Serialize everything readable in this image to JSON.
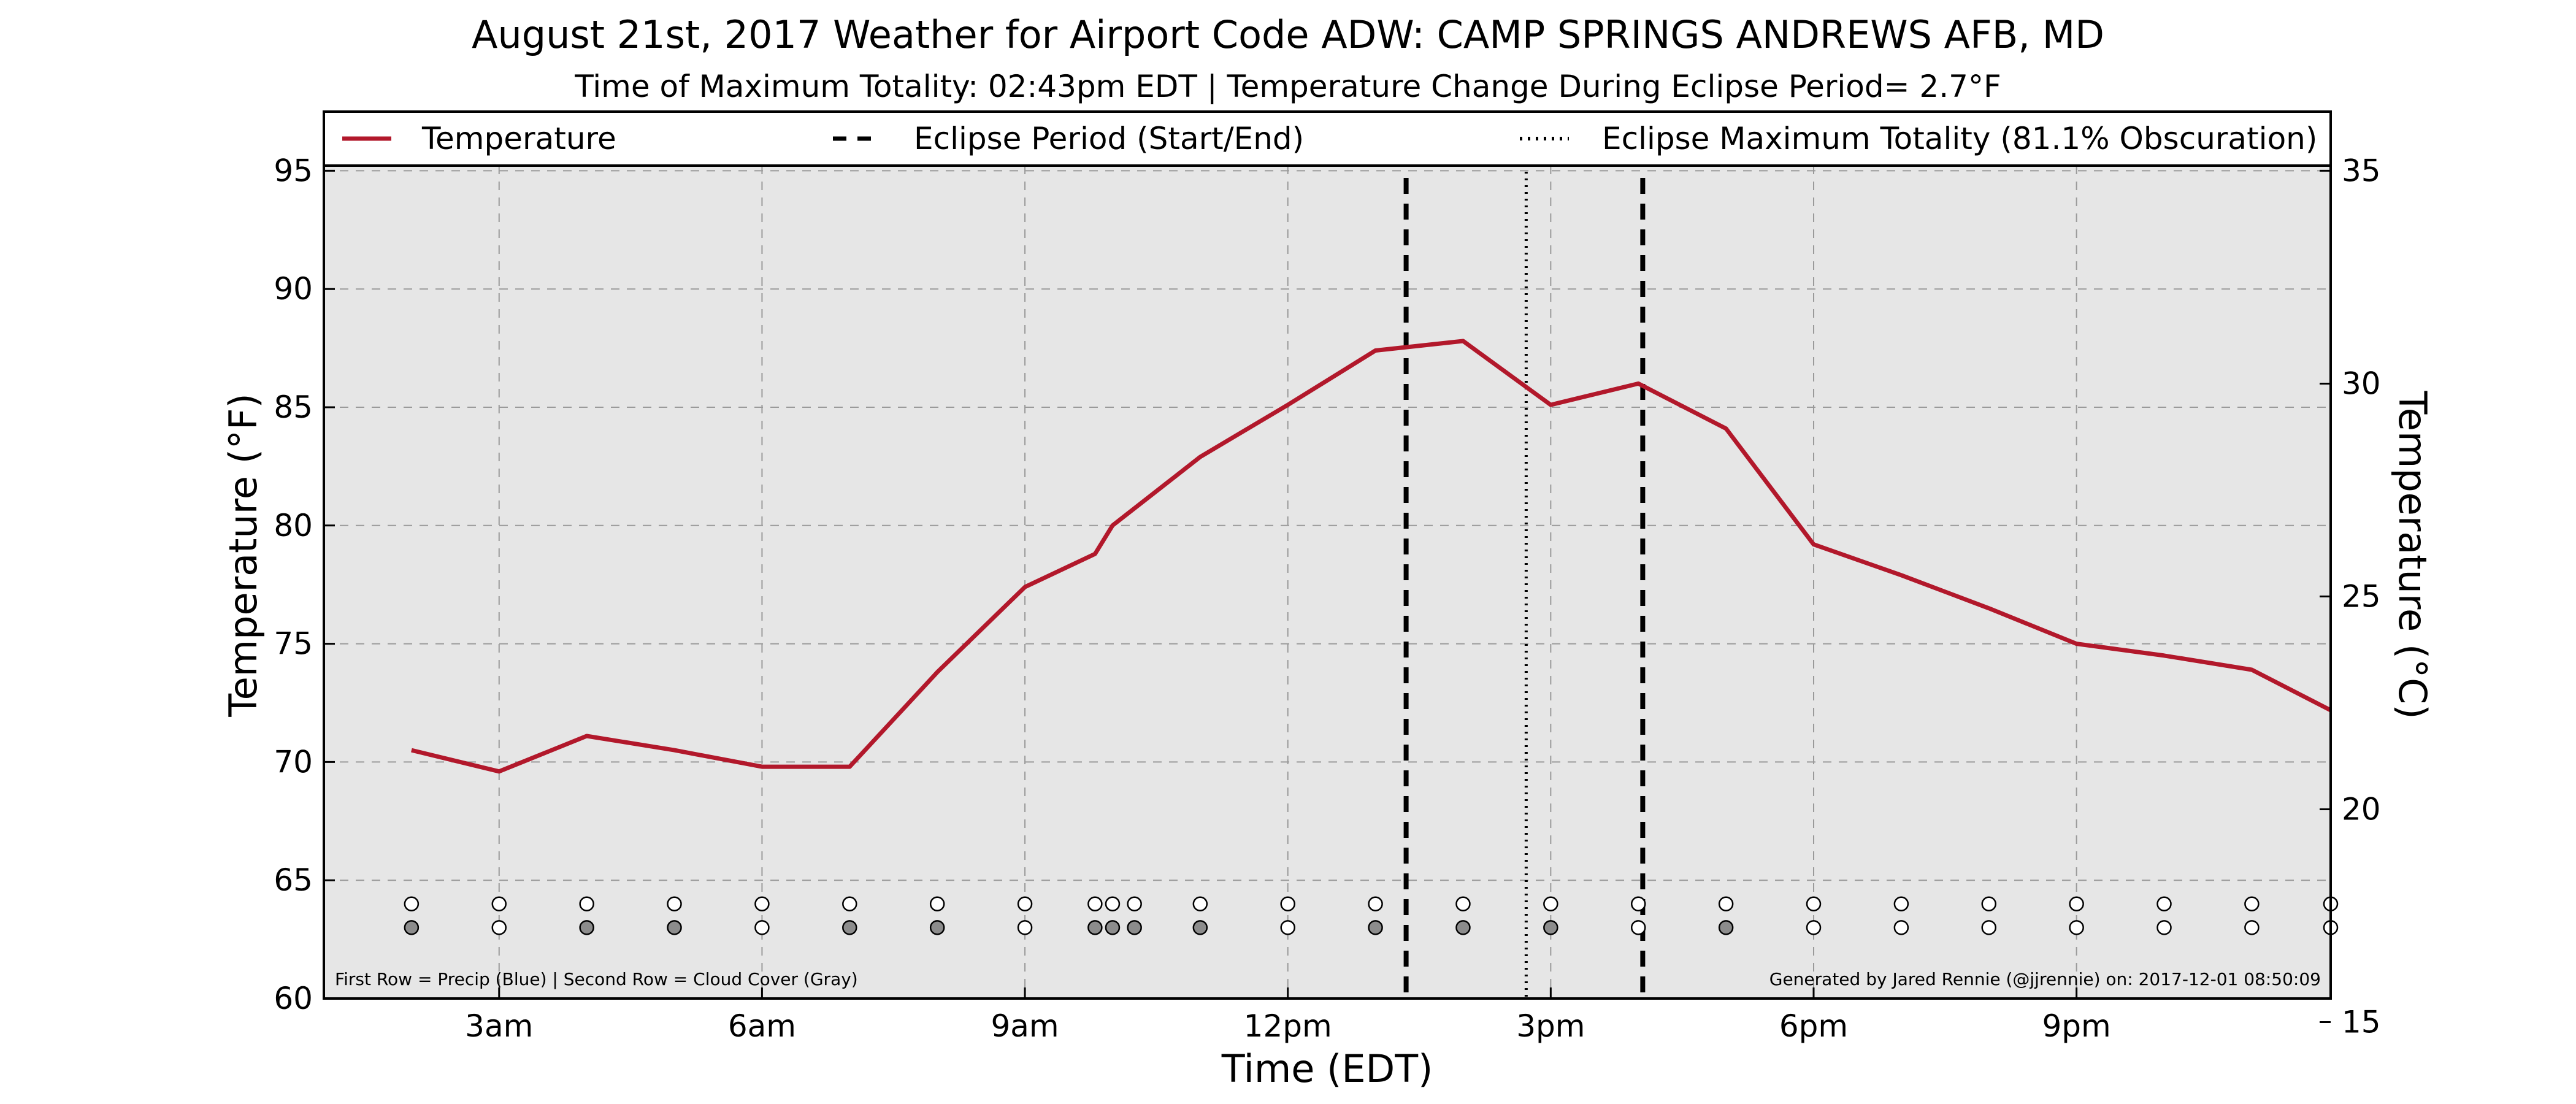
{
  "chart_data": {
    "type": "line",
    "title": "August 21st, 2017 Weather for Airport Code ADW: CAMP SPRINGS ANDREWS AFB, MD",
    "subtitle": "Time of Maximum Totality: 02:43pm EDT | Temperature Change During Eclipse Period= 2.7°F",
    "xlabel": "Time (EDT)",
    "ylabel": "Temperature (°F)",
    "ylabel_right": "Temperature (°C)",
    "xlim": [
      1.0,
      23.9
    ],
    "ylim": [
      60,
      97.5
    ],
    "ylim_right_celsius": [
      15.56,
      36.39
    ],
    "grid": true,
    "legend_placement": "top",
    "background": "#e6e6e6",
    "x_ticks": [
      {
        "value": 3,
        "label": "3am"
      },
      {
        "value": 6,
        "label": "6am"
      },
      {
        "value": 9,
        "label": "9am"
      },
      {
        "value": 12,
        "label": "12pm"
      },
      {
        "value": 15,
        "label": "3pm"
      },
      {
        "value": 18,
        "label": "6pm"
      },
      {
        "value": 21,
        "label": "9pm"
      }
    ],
    "y_ticks": [
      60,
      65,
      70,
      75,
      80,
      85,
      90,
      95
    ],
    "y_ticks_right": [
      15,
      20,
      25,
      30,
      35
    ],
    "series": [
      {
        "name": "Temperature",
        "color": "#b2182b",
        "x": [
          2.0,
          3.0,
          4.0,
          5.0,
          6.0,
          7.0,
          8.0,
          9.0,
          9.8,
          10.0,
          11.0,
          12.0,
          13.0,
          14.0,
          15.0,
          16.0,
          17.0,
          18.0,
          19.0,
          20.0,
          21.0,
          22.0,
          23.0,
          24.0
        ],
        "y": [
          70.5,
          69.6,
          71.1,
          70.5,
          69.8,
          69.8,
          73.8,
          77.4,
          78.8,
          80.0,
          82.9,
          85.1,
          87.4,
          87.8,
          85.1,
          86.0,
          84.1,
          79.2,
          77.9,
          76.5,
          75.0,
          74.5,
          73.9,
          72.0
        ]
      }
    ],
    "eclipse_start": 13.35,
    "eclipse_end": 16.05,
    "eclipse_max": 14.72,
    "legend": [
      {
        "label": "Temperature",
        "style": "solid",
        "color": "#b2182b"
      },
      {
        "label": "Eclipse Period (Start/End)",
        "style": "dashed",
        "color": "#000000"
      },
      {
        "label": "Eclipse Maximum Totality (81.1% Obscuration)",
        "style": "dotted",
        "color": "#000000"
      }
    ],
    "markers": {
      "precip_row_y": 64.0,
      "cloud_row_y": 63.0,
      "precip_color": "#ffffff",
      "cloud_filled_color": "#8c8c8c",
      "x": [
        2.0,
        3.0,
        4.0,
        5.0,
        6.0,
        7.0,
        8.0,
        9.0,
        9.8,
        10.0,
        10.25,
        11.0,
        12.0,
        13.0,
        14.0,
        15.0,
        16.0,
        17.0,
        18.0,
        19.0,
        20.0,
        21.0,
        22.0,
        23.0,
        24.0
      ],
      "cloud_filled": [
        true,
        false,
        true,
        true,
        false,
        true,
        true,
        false,
        true,
        true,
        true,
        true,
        false,
        true,
        true,
        true,
        false,
        true,
        false,
        false,
        false,
        false,
        false,
        false,
        false
      ]
    },
    "footnote_left": "First Row = Precip (Blue) | Second Row = Cloud Cover (Gray)",
    "footnote_right": "Generated by Jared Rennie (@jjrennie) on: 2017-12-01 08:50:09"
  }
}
